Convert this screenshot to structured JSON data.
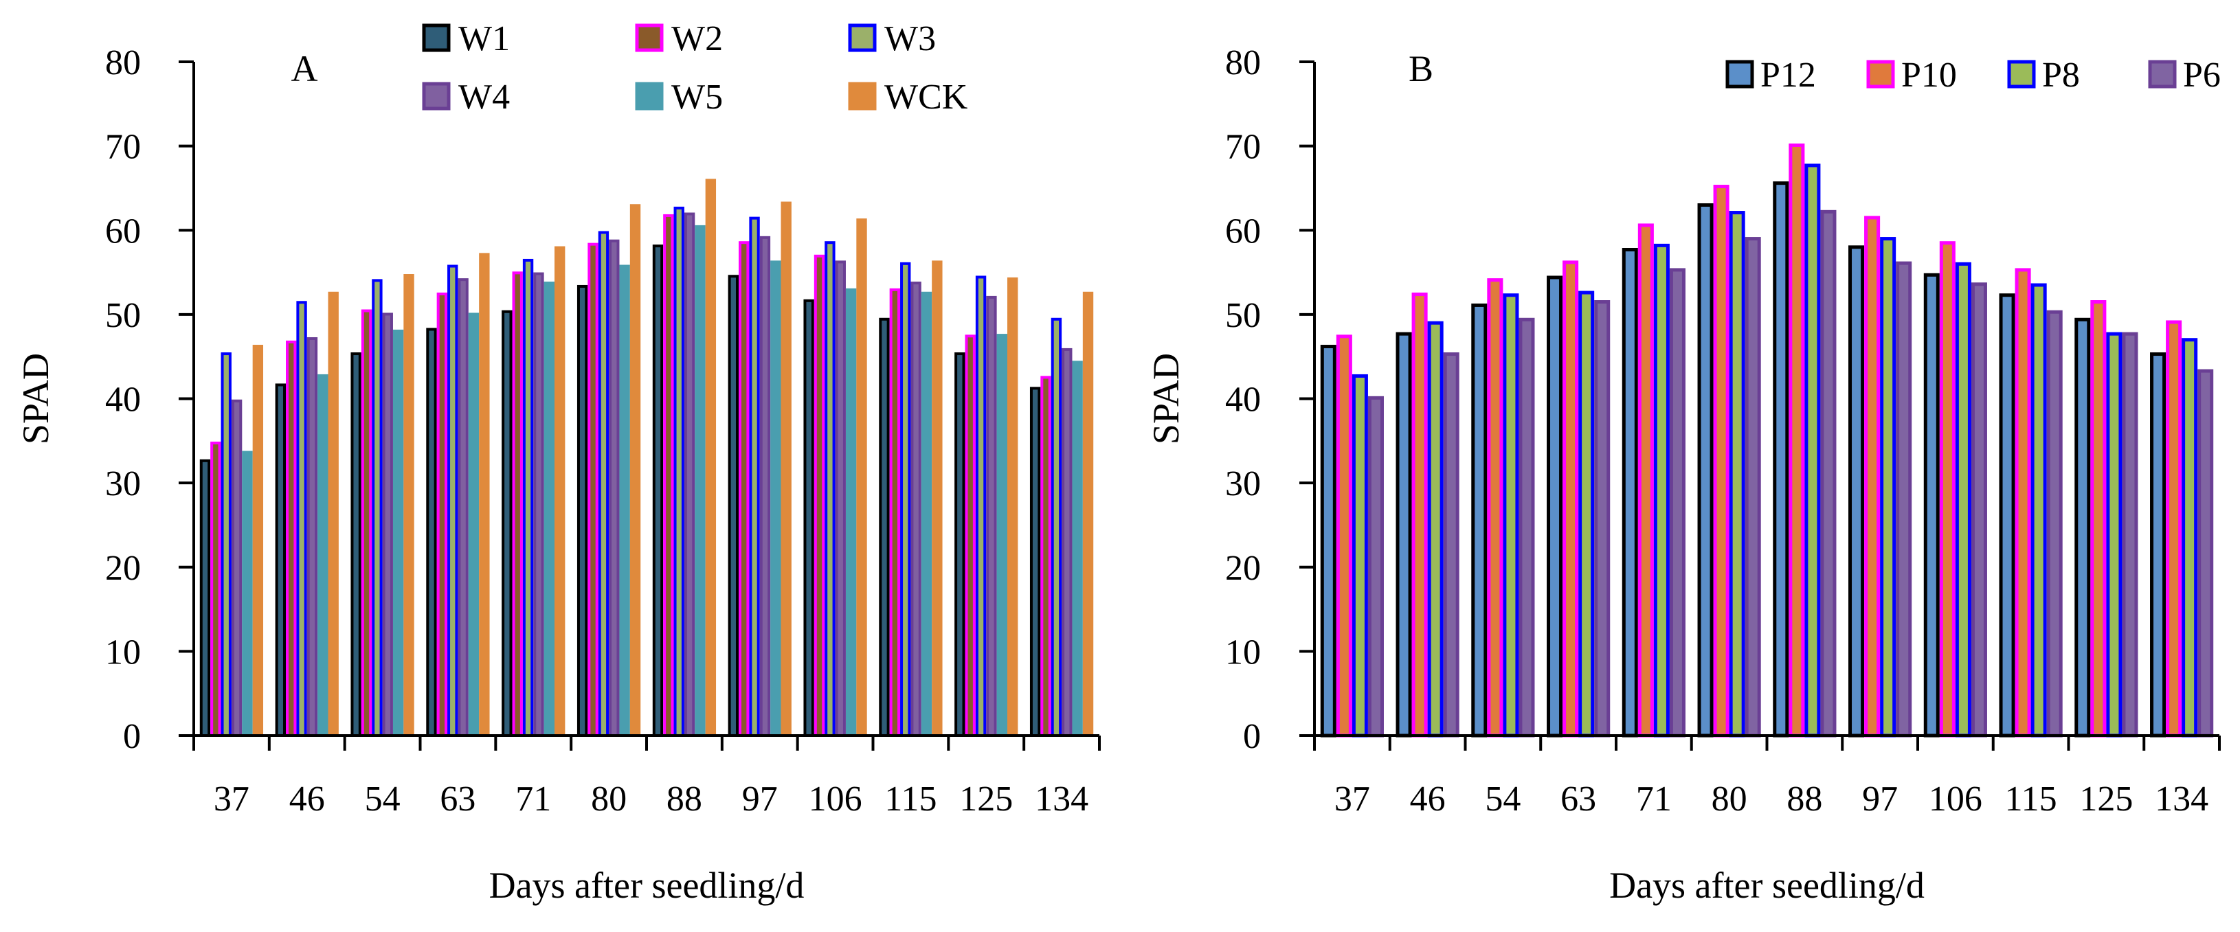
{
  "series_styles": {
    "W1": {
      "fill": "#2f5d78",
      "stroke": "#000000"
    },
    "W2": {
      "fill": "#8a5a2a",
      "stroke": "#ff00ff"
    },
    "W3": {
      "fill": "#9bb06a",
      "stroke": "#0000ff"
    },
    "W4": {
      "fill": "#8060a0",
      "stroke": "#6a3f94"
    },
    "W5": {
      "fill": "#4a9eaf",
      "stroke": "#4a9eaf"
    },
    "WCK": {
      "fill": "#e08a3c",
      "stroke": "#e08a3c"
    },
    "P12": {
      "fill": "#5b8fc9",
      "stroke": "#000000"
    },
    "P10": {
      "fill": "#e07a3c",
      "stroke": "#ff00ff"
    },
    "P8": {
      "fill": "#9bbb59",
      "stroke": "#0000ff"
    },
    "P6": {
      "fill": "#8064a2",
      "stroke": "#6a3f94"
    }
  },
  "chart_data": [
    {
      "type": "bar",
      "panel_label": "A",
      "title": "",
      "xlabel": "Days after seedling/d",
      "ylabel": "SPAD",
      "ylim": [
        0,
        80
      ],
      "yticks": [
        "0",
        "10",
        "20",
        "30",
        "40",
        "50",
        "60",
        "70",
        "80"
      ],
      "categories": [
        "37",
        "46",
        "54",
        "63",
        "71",
        "80",
        "88",
        "97",
        "106",
        "115",
        "125",
        "134"
      ],
      "legend_position": "top",
      "series": [
        {
          "name": "W1",
          "values": [
            32.8,
            41.8,
            45.5,
            48.4,
            50.5,
            53.5,
            58.3,
            54.7,
            51.8,
            49.6,
            45.5,
            41.4
          ]
        },
        {
          "name": "W2",
          "values": [
            34.9,
            46.9,
            50.6,
            52.6,
            55.1,
            58.5,
            61.9,
            58.7,
            57.1,
            53.1,
            47.6,
            42.7
          ]
        },
        {
          "name": "W3",
          "values": [
            45.5,
            51.6,
            54.2,
            55.9,
            56.6,
            59.9,
            62.8,
            61.6,
            58.7,
            56.2,
            54.6,
            49.6
          ]
        },
        {
          "name": "W4",
          "values": [
            39.9,
            47.3,
            50.2,
            54.3,
            55.0,
            58.9,
            62.1,
            59.3,
            56.4,
            53.9,
            52.2,
            46.0
          ]
        },
        {
          "name": "W5",
          "values": [
            33.8,
            42.9,
            48.2,
            50.2,
            53.9,
            55.9,
            60.6,
            56.4,
            53.1,
            52.7,
            47.7,
            44.5
          ]
        },
        {
          "name": "WCK",
          "values": [
            46.4,
            52.7,
            54.8,
            57.3,
            58.1,
            63.1,
            66.1,
            63.4,
            61.4,
            56.4,
            54.4,
            52.7
          ]
        }
      ]
    },
    {
      "type": "bar",
      "panel_label": "B",
      "title": "",
      "xlabel": "Days after seedling/d",
      "ylabel": "SPAD",
      "ylim": [
        0,
        80
      ],
      "yticks": [
        "0",
        "10",
        "20",
        "30",
        "40",
        "50",
        "60",
        "70",
        "80"
      ],
      "categories": [
        "37",
        "46",
        "54",
        "63",
        "71",
        "80",
        "88",
        "97",
        "106",
        "115",
        "125",
        "134"
      ],
      "legend_position": "top-right",
      "series": [
        {
          "name": "P12",
          "values": [
            46.4,
            47.9,
            51.3,
            54.6,
            57.9,
            63.2,
            65.8,
            58.2,
            54.9,
            52.5,
            49.6,
            45.5
          ]
        },
        {
          "name": "P10",
          "values": [
            47.6,
            52.6,
            54.3,
            56.4,
            60.8,
            65.4,
            70.3,
            61.7,
            58.7,
            55.5,
            51.7,
            49.3
          ]
        },
        {
          "name": "P8",
          "values": [
            42.9,
            49.2,
            52.5,
            52.8,
            58.4,
            62.3,
            67.9,
            59.2,
            56.2,
            53.7,
            47.9,
            47.2
          ]
        },
        {
          "name": "P6",
          "values": [
            40.3,
            45.5,
            49.6,
            51.7,
            55.5,
            59.2,
            62.4,
            56.3,
            53.8,
            50.5,
            47.9,
            43.5
          ]
        }
      ]
    }
  ]
}
